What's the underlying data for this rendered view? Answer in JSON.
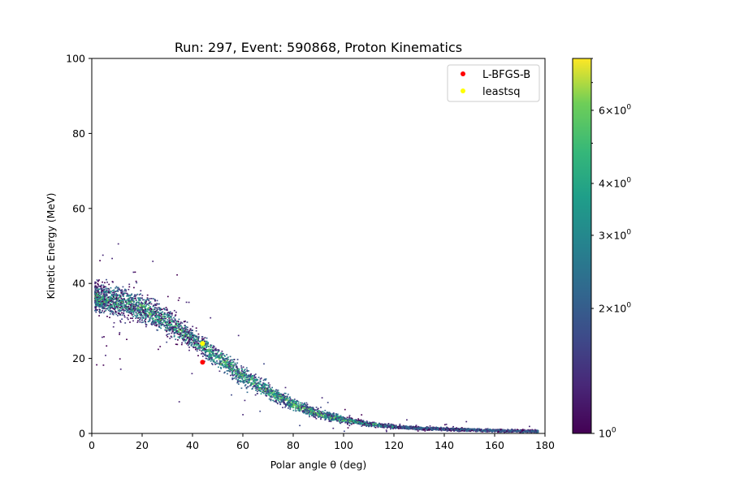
{
  "chart_data": {
    "type": "heatmap",
    "title": "Run: 297, Event: 590868, Proton Kinematics",
    "xlabel": "Polar angle θ (deg)",
    "ylabel": "Kinetic Energy (MeV)",
    "xlim": [
      0,
      180
    ],
    "ylim": [
      0,
      100
    ],
    "xticks": [
      0,
      20,
      40,
      60,
      80,
      100,
      120,
      140,
      160,
      180
    ],
    "yticks": [
      0,
      20,
      40,
      60,
      80,
      100
    ],
    "grid": false,
    "legend_position": "top-right",
    "band_centerline": {
      "theta": [
        2,
        10,
        20,
        30,
        40,
        50,
        60,
        70,
        80,
        90,
        100,
        110,
        120,
        130,
        140,
        150,
        160,
        170,
        176
      ],
      "energy": [
        36,
        35,
        33,
        29.5,
        25,
        20,
        15,
        11,
        7.5,
        5,
        3.5,
        2.3,
        1.6,
        1.2,
        1.0,
        0.8,
        0.6,
        0.5,
        0.4
      ]
    },
    "band_halfwidth": {
      "theta": [
        2,
        20,
        40,
        60,
        80,
        100,
        120,
        180
      ],
      "energy": [
        3.5,
        3.5,
        2.5,
        2.2,
        1.5,
        0.8,
        0.4,
        0.3
      ]
    },
    "series": [
      {
        "name": "L-BFGS-B",
        "type": "scatter",
        "color": "#ff0000",
        "x": [
          44
        ],
        "y": [
          19
        ]
      },
      {
        "name": "leastsq",
        "type": "scatter",
        "color": "#ffff00",
        "x": [
          44
        ],
        "y": [
          24
        ]
      }
    ],
    "colorbar": {
      "scale": "log",
      "colormap": "viridis",
      "range": [
        1,
        8
      ],
      "ticks": [
        {
          "value": 1,
          "label": "10^0"
        },
        {
          "value": 2,
          "label": "2×10^0"
        },
        {
          "value": 3,
          "label": "3×10^0"
        },
        {
          "value": 4,
          "label": "4×10^0"
        },
        {
          "value": 6,
          "label": "6×10^0"
        }
      ]
    }
  }
}
